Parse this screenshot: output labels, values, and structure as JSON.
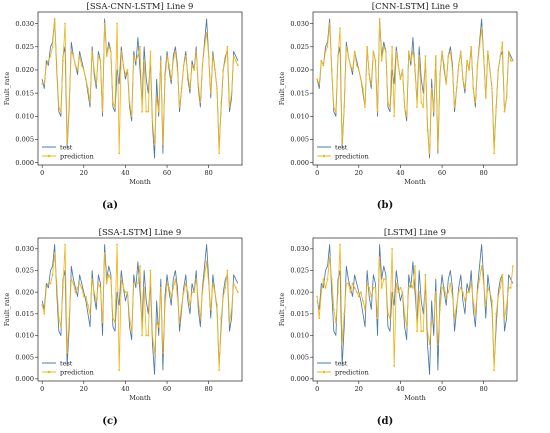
{
  "chart_data": [
    {
      "type": "line",
      "title": "[SSA-CNN-LSTM] Line 9",
      "panel_label": "(a)",
      "xlabel": "Month",
      "ylabel": "Fault_rate",
      "xlim": [
        -2,
        96
      ],
      "ylim": [
        -0.0005,
        0.0325
      ],
      "xticks": [
        0,
        20,
        40,
        60,
        80
      ],
      "yticks": [
        0.0,
        0.005,
        0.01,
        0.015,
        0.02,
        0.025,
        0.03
      ],
      "yticklabels": [
        "0.000",
        "0.005",
        "0.010",
        "0.015",
        "0.020",
        "0.025",
        "0.030"
      ],
      "legend_position": "lower-left",
      "colors": {
        "test": "#4a78a8",
        "prediction": "#f2b519"
      },
      "series": [
        {
          "name": "test",
          "values": [
            0.018,
            0.016,
            0.022,
            0.021,
            0.025,
            0.026,
            0.031,
            0.02,
            0.011,
            0.01,
            0.023,
            0.025,
            0.003,
            0.012,
            0.026,
            0.023,
            0.021,
            0.019,
            0.024,
            0.022,
            0.02,
            0.018,
            0.015,
            0.012,
            0.025,
            0.019,
            0.016,
            0.024,
            0.022,
            0.01,
            0.031,
            0.023,
            0.026,
            0.024,
            0.012,
            0.011,
            0.02,
            0.017,
            0.025,
            0.021,
            0.018,
            0.02,
            0.012,
            0.009,
            0.024,
            0.021,
            0.027,
            0.02,
            0.013,
            0.025,
            0.018,
            0.015,
            0.022,
            0.008,
            0.001,
            0.018,
            0.01,
            0.023,
            0.002,
            0.019,
            0.024,
            0.02,
            0.017,
            0.023,
            0.025,
            0.021,
            0.011,
            0.016,
            0.021,
            0.024,
            0.018,
            0.015,
            0.022,
            0.02,
            0.025,
            0.016,
            0.012,
            0.021,
            0.026,
            0.031,
            0.023,
            0.014,
            0.024,
            0.02,
            0.016,
            0.003,
            0.012,
            0.02,
            0.023,
            0.024,
            0.011,
            0.014,
            0.024,
            0.023,
            0.022
          ]
        },
        {
          "name": "prediction",
          "values": [
            0.017,
            0.017,
            0.021,
            0.022,
            0.023,
            0.025,
            0.031,
            0.021,
            0.012,
            0.011,
            0.022,
            0.03,
            0.004,
            0.013,
            0.024,
            0.023,
            0.021,
            0.02,
            0.023,
            0.021,
            0.02,
            0.018,
            0.016,
            0.013,
            0.024,
            0.02,
            0.017,
            0.023,
            0.022,
            0.011,
            0.03,
            0.023,
            0.025,
            0.024,
            0.013,
            0.012,
            0.03,
            0.002,
            0.024,
            0.021,
            0.019,
            0.02,
            0.013,
            0.01,
            0.023,
            0.022,
            0.023,
            0.025,
            0.011,
            0.022,
            0.011,
            0.011,
            0.024,
            0.009,
            0.004,
            0.014,
            0.011,
            0.022,
            0.004,
            0.018,
            0.023,
            0.021,
            0.018,
            0.022,
            0.024,
            0.02,
            0.012,
            0.016,
            0.021,
            0.023,
            0.019,
            0.016,
            0.021,
            0.02,
            0.024,
            0.017,
            0.013,
            0.021,
            0.025,
            0.028,
            0.023,
            0.015,
            0.023,
            0.02,
            0.016,
            0.002,
            0.013,
            0.02,
            0.022,
            0.025,
            0.012,
            0.015,
            0.023,
            0.022,
            0.021
          ]
        }
      ]
    },
    {
      "type": "line",
      "title": "[CNN-LSTM] Line 9",
      "panel_label": "(b)",
      "xlabel": "Month",
      "ylabel": "Fault_rate",
      "xlim": [
        -2,
        96
      ],
      "ylim": [
        -0.0005,
        0.0325
      ],
      "xticks": [
        0,
        20,
        40,
        60,
        80
      ],
      "yticks": [
        0.0,
        0.005,
        0.01,
        0.015,
        0.02,
        0.025,
        0.03
      ],
      "yticklabels": [
        "0.000",
        "0.005",
        "0.010",
        "0.015",
        "0.020",
        "0.025",
        "0.030"
      ],
      "legend_position": "lower-left",
      "colors": {
        "test": "#4a78a8",
        "prediction": "#f2b519"
      },
      "series": [
        {
          "name": "test",
          "values": [
            0.018,
            0.016,
            0.022,
            0.021,
            0.025,
            0.026,
            0.031,
            0.02,
            0.011,
            0.01,
            0.023,
            0.025,
            0.003,
            0.012,
            0.026,
            0.023,
            0.021,
            0.019,
            0.024,
            0.022,
            0.02,
            0.018,
            0.015,
            0.012,
            0.025,
            0.019,
            0.016,
            0.024,
            0.022,
            0.01,
            0.031,
            0.023,
            0.026,
            0.024,
            0.012,
            0.011,
            0.02,
            0.017,
            0.025,
            0.021,
            0.018,
            0.02,
            0.012,
            0.009,
            0.024,
            0.021,
            0.027,
            0.02,
            0.013,
            0.025,
            0.018,
            0.015,
            0.022,
            0.008,
            0.001,
            0.018,
            0.01,
            0.023,
            0.002,
            0.019,
            0.024,
            0.02,
            0.017,
            0.023,
            0.025,
            0.021,
            0.011,
            0.016,
            0.021,
            0.024,
            0.018,
            0.015,
            0.022,
            0.02,
            0.025,
            0.016,
            0.012,
            0.021,
            0.026,
            0.031,
            0.023,
            0.014,
            0.024,
            0.02,
            0.016,
            0.003,
            0.012,
            0.02,
            0.023,
            0.024,
            0.011,
            0.014,
            0.024,
            0.023,
            0.022
          ]
        },
        {
          "name": "prediction",
          "values": [
            0.018,
            0.017,
            0.022,
            0.021,
            0.024,
            0.025,
            0.03,
            0.02,
            0.012,
            0.011,
            0.023,
            0.029,
            0.004,
            0.012,
            0.025,
            0.023,
            0.021,
            0.02,
            0.024,
            0.021,
            0.02,
            0.018,
            0.016,
            0.012,
            0.025,
            0.019,
            0.017,
            0.024,
            0.022,
            0.011,
            0.031,
            0.022,
            0.025,
            0.024,
            0.013,
            0.012,
            0.025,
            0.01,
            0.024,
            0.021,
            0.018,
            0.02,
            0.012,
            0.01,
            0.024,
            0.022,
            0.024,
            0.021,
            0.012,
            0.023,
            0.013,
            0.012,
            0.023,
            0.007,
            0.002,
            0.016,
            0.011,
            0.023,
            0.003,
            0.019,
            0.024,
            0.021,
            0.017,
            0.023,
            0.024,
            0.02,
            0.012,
            0.016,
            0.021,
            0.024,
            0.018,
            0.016,
            0.022,
            0.02,
            0.025,
            0.016,
            0.013,
            0.021,
            0.025,
            0.029,
            0.023,
            0.014,
            0.024,
            0.02,
            0.016,
            0.002,
            0.012,
            0.02,
            0.023,
            0.026,
            0.011,
            0.014,
            0.024,
            0.022,
            0.022
          ]
        }
      ]
    },
    {
      "type": "line",
      "title": "[SSA-LSTM] Line 9",
      "panel_label": "(c)",
      "xlabel": "Month",
      "ylabel": "Fault_rate",
      "xlim": [
        -2,
        96
      ],
      "ylim": [
        -0.0005,
        0.0325
      ],
      "xticks": [
        0,
        20,
        40,
        60,
        80
      ],
      "yticks": [
        0.0,
        0.005,
        0.01,
        0.015,
        0.02,
        0.025,
        0.03
      ],
      "yticklabels": [
        "0.000",
        "0.005",
        "0.010",
        "0.015",
        "0.020",
        "0.025",
        "0.030"
      ],
      "legend_position": "lower-left",
      "colors": {
        "test": "#4a78a8",
        "prediction": "#f2b519"
      },
      "series": [
        {
          "name": "test",
          "values": [
            0.018,
            0.016,
            0.022,
            0.021,
            0.025,
            0.026,
            0.031,
            0.02,
            0.011,
            0.01,
            0.023,
            0.025,
            0.003,
            0.012,
            0.026,
            0.023,
            0.021,
            0.019,
            0.024,
            0.022,
            0.02,
            0.018,
            0.015,
            0.012,
            0.025,
            0.019,
            0.016,
            0.024,
            0.022,
            0.01,
            0.031,
            0.023,
            0.026,
            0.024,
            0.012,
            0.011,
            0.02,
            0.017,
            0.025,
            0.021,
            0.018,
            0.02,
            0.012,
            0.009,
            0.024,
            0.021,
            0.027,
            0.02,
            0.013,
            0.025,
            0.018,
            0.015,
            0.022,
            0.008,
            0.001,
            0.018,
            0.01,
            0.023,
            0.002,
            0.019,
            0.024,
            0.02,
            0.017,
            0.023,
            0.025,
            0.021,
            0.011,
            0.016,
            0.021,
            0.024,
            0.018,
            0.015,
            0.022,
            0.02,
            0.025,
            0.016,
            0.012,
            0.021,
            0.026,
            0.031,
            0.023,
            0.014,
            0.024,
            0.02,
            0.016,
            0.003,
            0.012,
            0.02,
            0.023,
            0.024,
            0.011,
            0.014,
            0.024,
            0.023,
            0.022
          ]
        },
        {
          "name": "prediction",
          "values": [
            0.017,
            0.015,
            0.021,
            0.022,
            0.022,
            0.024,
            0.029,
            0.022,
            0.014,
            0.012,
            0.021,
            0.031,
            0.006,
            0.014,
            0.023,
            0.022,
            0.02,
            0.021,
            0.022,
            0.021,
            0.019,
            0.019,
            0.017,
            0.015,
            0.023,
            0.02,
            0.018,
            0.022,
            0.021,
            0.013,
            0.029,
            0.022,
            0.024,
            0.023,
            0.014,
            0.013,
            0.031,
            0.002,
            0.023,
            0.021,
            0.02,
            0.02,
            0.014,
            0.011,
            0.022,
            0.022,
            0.022,
            0.026,
            0.01,
            0.021,
            0.01,
            0.01,
            0.025,
            0.01,
            0.006,
            0.013,
            0.012,
            0.021,
            0.006,
            0.017,
            0.022,
            0.021,
            0.019,
            0.021,
            0.023,
            0.019,
            0.013,
            0.017,
            0.02,
            0.022,
            0.02,
            0.017,
            0.02,
            0.02,
            0.023,
            0.018,
            0.014,
            0.02,
            0.024,
            0.027,
            0.022,
            0.016,
            0.022,
            0.02,
            0.017,
            0.002,
            0.014,
            0.019,
            0.021,
            0.025,
            0.013,
            0.016,
            0.022,
            0.021,
            0.02
          ]
        }
      ]
    },
    {
      "type": "line",
      "title": "[LSTM] Line 9",
      "panel_label": "(d)",
      "xlabel": "Month",
      "ylabel": "Fault_rate",
      "xlim": [
        -2,
        96
      ],
      "ylim": [
        -0.0005,
        0.0325
      ],
      "xticks": [
        0,
        20,
        40,
        60,
        80
      ],
      "yticks": [
        0.0,
        0.005,
        0.01,
        0.015,
        0.02,
        0.025,
        0.03
      ],
      "yticklabels": [
        "0.000",
        "0.005",
        "0.010",
        "0.015",
        "0.020",
        "0.025",
        "0.030"
      ],
      "legend_position": "lower-left",
      "colors": {
        "test": "#4a78a8",
        "prediction": "#f2b519"
      },
      "series": [
        {
          "name": "test",
          "values": [
            0.018,
            0.016,
            0.022,
            0.021,
            0.025,
            0.026,
            0.031,
            0.02,
            0.011,
            0.01,
            0.023,
            0.025,
            0.003,
            0.012,
            0.026,
            0.023,
            0.021,
            0.019,
            0.024,
            0.022,
            0.02,
            0.018,
            0.015,
            0.012,
            0.025,
            0.019,
            0.016,
            0.024,
            0.022,
            0.01,
            0.031,
            0.023,
            0.026,
            0.024,
            0.012,
            0.011,
            0.02,
            0.017,
            0.025,
            0.021,
            0.018,
            0.02,
            0.012,
            0.009,
            0.024,
            0.021,
            0.027,
            0.02,
            0.013,
            0.025,
            0.018,
            0.015,
            0.022,
            0.008,
            0.001,
            0.018,
            0.01,
            0.023,
            0.002,
            0.019,
            0.024,
            0.02,
            0.017,
            0.023,
            0.025,
            0.021,
            0.011,
            0.016,
            0.021,
            0.024,
            0.018,
            0.015,
            0.022,
            0.02,
            0.025,
            0.016,
            0.012,
            0.021,
            0.026,
            0.031,
            0.023,
            0.014,
            0.024,
            0.02,
            0.016,
            0.003,
            0.012,
            0.02,
            0.023,
            0.024,
            0.011,
            0.014,
            0.024,
            0.023,
            0.022
          ]
        },
        {
          "name": "prediction",
          "values": [
            0.019,
            0.014,
            0.02,
            0.023,
            0.021,
            0.023,
            0.028,
            0.023,
            0.016,
            0.013,
            0.02,
            0.031,
            0.008,
            0.015,
            0.022,
            0.022,
            0.02,
            0.022,
            0.021,
            0.02,
            0.019,
            0.02,
            0.018,
            0.016,
            0.022,
            0.021,
            0.019,
            0.021,
            0.021,
            0.014,
            0.028,
            0.021,
            0.023,
            0.023,
            0.015,
            0.014,
            0.03,
            0.003,
            0.022,
            0.02,
            0.021,
            0.02,
            0.015,
            0.012,
            0.021,
            0.022,
            0.021,
            0.026,
            0.011,
            0.02,
            0.011,
            0.011,
            0.024,
            0.011,
            0.008,
            0.013,
            0.013,
            0.02,
            0.008,
            0.016,
            0.021,
            0.021,
            0.019,
            0.02,
            0.022,
            0.019,
            0.014,
            0.017,
            0.02,
            0.021,
            0.02,
            0.018,
            0.02,
            0.02,
            0.022,
            0.018,
            0.015,
            0.02,
            0.023,
            0.026,
            0.022,
            0.017,
            0.021,
            0.02,
            0.018,
            0.002,
            0.015,
            0.019,
            0.021,
            0.024,
            0.014,
            0.017,
            0.021,
            0.021,
            0.026
          ]
        }
      ]
    }
  ]
}
